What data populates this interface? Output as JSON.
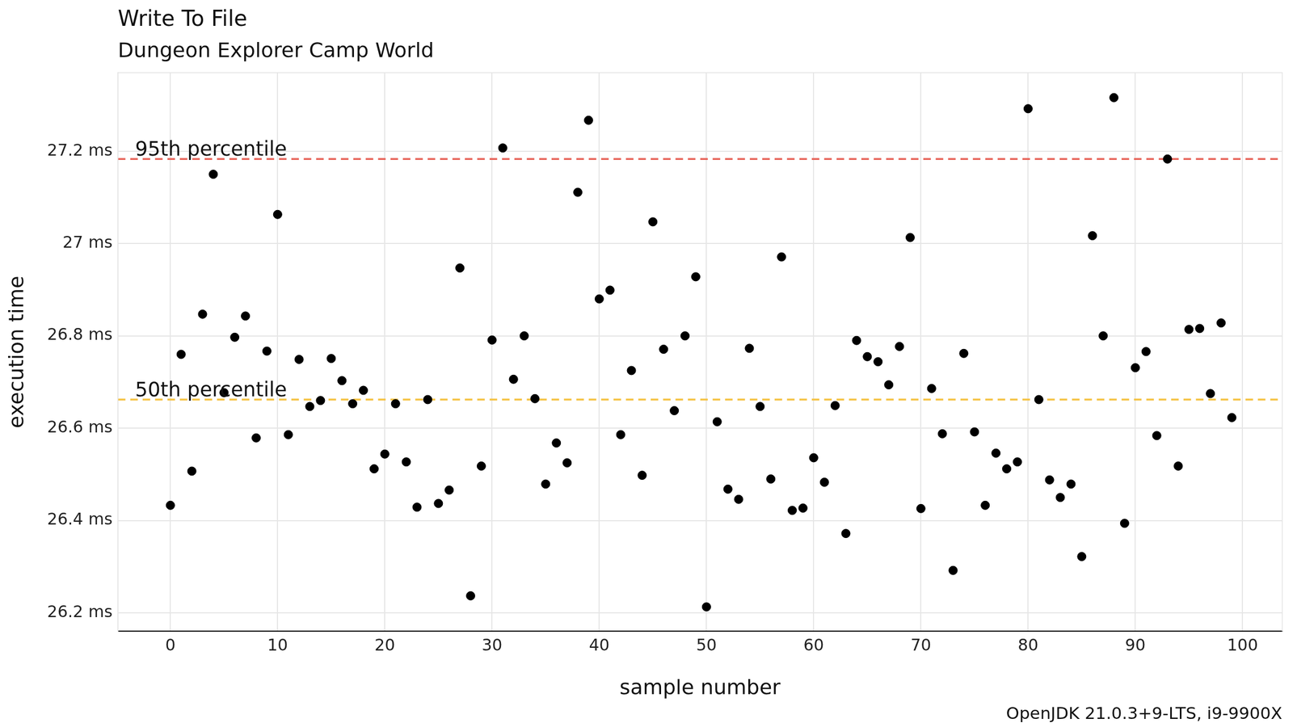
{
  "chart_data": {
    "type": "scatter",
    "title": "Write To File",
    "subtitle": "Dungeon Explorer Camp World",
    "x_label": "sample number",
    "y_label": "execution time",
    "caption": "OpenJDK 21.0.3+9-LTS, i9-9900X",
    "x": [
      0,
      1,
      2,
      3,
      4,
      5,
      6,
      7,
      8,
      9,
      10,
      11,
      12,
      13,
      14,
      15,
      16,
      17,
      18,
      19,
      20,
      21,
      22,
      23,
      24,
      25,
      26,
      27,
      28,
      29,
      30,
      31,
      32,
      33,
      34,
      35,
      36,
      37,
      38,
      39,
      40,
      41,
      42,
      43,
      44,
      45,
      46,
      47,
      48,
      49,
      50,
      51,
      52,
      53,
      54,
      55,
      56,
      57,
      58,
      59,
      60,
      61,
      62,
      63,
      64,
      65,
      66,
      67,
      68,
      69,
      70,
      71,
      72,
      73,
      74,
      75,
      76,
      77,
      78,
      79,
      80,
      81,
      82,
      83,
      84,
      85,
      86,
      87,
      88,
      89,
      90,
      91,
      92,
      93,
      94,
      95,
      96,
      97,
      98,
      99
    ],
    "values": [
      26.433,
      26.76,
      26.507,
      26.847,
      27.15,
      26.677,
      26.797,
      26.843,
      26.579,
      26.767,
      27.063,
      26.586,
      26.749,
      26.647,
      26.66,
      26.751,
      26.703,
      26.653,
      26.682,
      26.512,
      26.544,
      26.653,
      26.527,
      26.429,
      26.662,
      26.437,
      26.466,
      26.947,
      26.237,
      26.518,
      26.791,
      27.207,
      26.706,
      26.8,
      26.664,
      26.479,
      26.568,
      26.525,
      27.111,
      27.267,
      26.88,
      26.899,
      26.586,
      26.725,
      26.498,
      27.047,
      26.771,
      26.638,
      26.8,
      26.928,
      26.213,
      26.614,
      26.468,
      26.446,
      26.773,
      26.647,
      26.49,
      26.971,
      26.422,
      26.427,
      26.536,
      26.483,
      26.649,
      26.372,
      26.79,
      26.755,
      26.744,
      26.694,
      26.777,
      27.013,
      26.426,
      26.686,
      26.588,
      26.292,
      26.762,
      26.592,
      26.433,
      26.546,
      26.512,
      26.527,
      27.292,
      26.662,
      26.488,
      26.45,
      26.479,
      26.322,
      27.017,
      26.8,
      27.316,
      26.394,
      26.731,
      26.766,
      26.584,
      27.183,
      26.518,
      26.814,
      26.816,
      26.675,
      26.828,
      26.623
    ],
    "color": "#000000",
    "marker": "circle",
    "xlim": [
      -4.9,
      103.7
    ],
    "xticks": [
      0,
      10,
      20,
      30,
      40,
      50,
      60,
      70,
      80,
      90,
      100
    ],
    "ylim": [
      26.16,
      27.37
    ],
    "yticks": [
      {
        "value": 26.2,
        "label": "26.2 ms"
      },
      {
        "value": 26.4,
        "label": "26.4 ms"
      },
      {
        "value": 26.6,
        "label": "26.6 ms"
      },
      {
        "value": 26.8,
        "label": "26.8 ms"
      },
      {
        "value": 27,
        "label": "27 ms"
      },
      {
        "value": 27.2,
        "label": "27.2 ms"
      }
    ],
    "grid": true,
    "reference_lines": [
      {
        "label": "95th percentile",
        "value": 27.183,
        "color": "#e8645a",
        "line_style": "dashed"
      },
      {
        "label": "50th percentile",
        "value": 26.662,
        "color": "#f5c242",
        "line_style": "dashed"
      }
    ]
  }
}
